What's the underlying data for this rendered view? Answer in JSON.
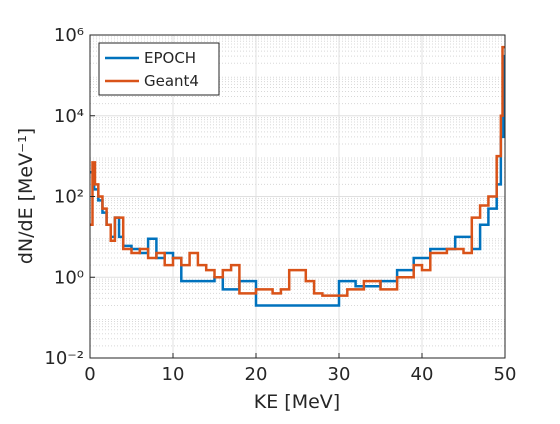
{
  "chart_data": {
    "type": "step",
    "x_label": "KE [MeV]",
    "y_label": "dN/dE [MeV⁻¹]",
    "xlim": [
      0,
      50
    ],
    "xticks": [
      0,
      10,
      20,
      30,
      40,
      50
    ],
    "ylim": [
      0.01,
      1000000
    ],
    "y_scale": "log",
    "yticks": [
      {
        "value": 0.01,
        "label": "10⁻²"
      },
      {
        "value": 1,
        "label": "10⁰"
      },
      {
        "value": 100,
        "label": "10²"
      },
      {
        "value": 10000,
        "label": "10⁴"
      },
      {
        "value": 1000000,
        "label": "10⁶"
      }
    ],
    "grid": true,
    "minor_grid": true,
    "legend": "upper left",
    "series": [
      {
        "name": "EPOCH",
        "color": "#0072bd",
        "x": [
          0,
          0.5,
          1,
          1.5,
          2,
          2.5,
          3,
          3.5,
          4,
          5,
          6,
          7,
          8,
          9,
          10,
          11,
          15,
          16,
          18,
          20,
          30,
          32,
          35,
          37,
          39,
          41,
          44,
          46,
          47,
          48,
          49,
          49.5,
          49.8,
          50
        ],
        "values": [
          400,
          150,
          80,
          40,
          20,
          10,
          30,
          10,
          6,
          5,
          4,
          9,
          3,
          4,
          3,
          0.8,
          1,
          0.5,
          0.8,
          0.2,
          0.8,
          0.6,
          0.8,
          1.5,
          3,
          5,
          10,
          5,
          20,
          50,
          200,
          3000,
          300000,
          300000
        ]
      },
      {
        "name": "Geant4",
        "color": "#d95319",
        "x": [
          0,
          0.3,
          0.6,
          1,
          1.5,
          2,
          2.5,
          3,
          4,
          5,
          6,
          7,
          8,
          9,
          10,
          11,
          12,
          13,
          14,
          15,
          16,
          17,
          18,
          20,
          22,
          23,
          24,
          26,
          27,
          28,
          31,
          33,
          35,
          37,
          39,
          40,
          41,
          43,
          45,
          46,
          47,
          48,
          49,
          49.5,
          49.7,
          50
        ],
        "values": [
          20,
          700,
          200,
          100,
          50,
          20,
          8,
          30,
          5,
          4,
          5,
          3,
          4,
          2,
          3,
          2,
          4,
          2,
          1.5,
          1,
          1.5,
          2,
          0.4,
          0.5,
          0.4,
          0.5,
          1.5,
          0.8,
          0.4,
          0.35,
          0.5,
          0.8,
          0.5,
          1,
          2,
          1.5,
          4,
          5,
          4,
          30,
          60,
          100,
          1000,
          10000,
          500000,
          500000
        ]
      }
    ]
  }
}
